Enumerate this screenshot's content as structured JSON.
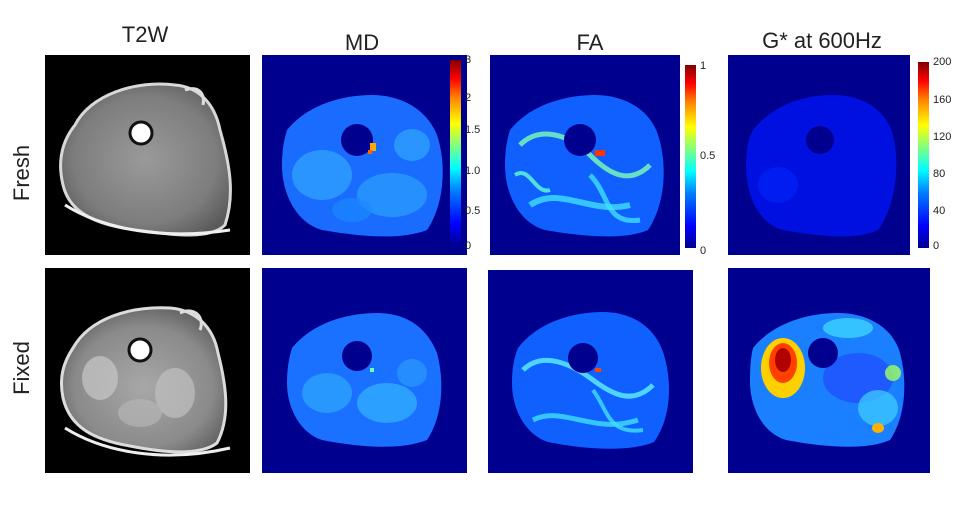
{
  "columns": [
    {
      "id": "t2w",
      "title": "T2W"
    },
    {
      "id": "md",
      "title": "MD"
    },
    {
      "id": "fa",
      "title": "FA"
    },
    {
      "id": "gstar",
      "title": "G* at 600Hz"
    }
  ],
  "rows": [
    {
      "id": "fresh",
      "label": "Fresh"
    },
    {
      "id": "fixed",
      "label": "Fixed"
    }
  ],
  "colorbars": {
    "md": {
      "ticks": [
        "3",
        "2",
        "1.5",
        "1.0",
        "0.5",
        "0"
      ]
    },
    "fa": {
      "ticks": [
        "1",
        "0.5",
        "0"
      ]
    },
    "gstar": {
      "ticks": [
        "200",
        "160",
        "120",
        "80",
        "40",
        "0"
      ]
    }
  },
  "colors": {
    "map_background": "#00008f",
    "t2w_background": "#000000"
  }
}
